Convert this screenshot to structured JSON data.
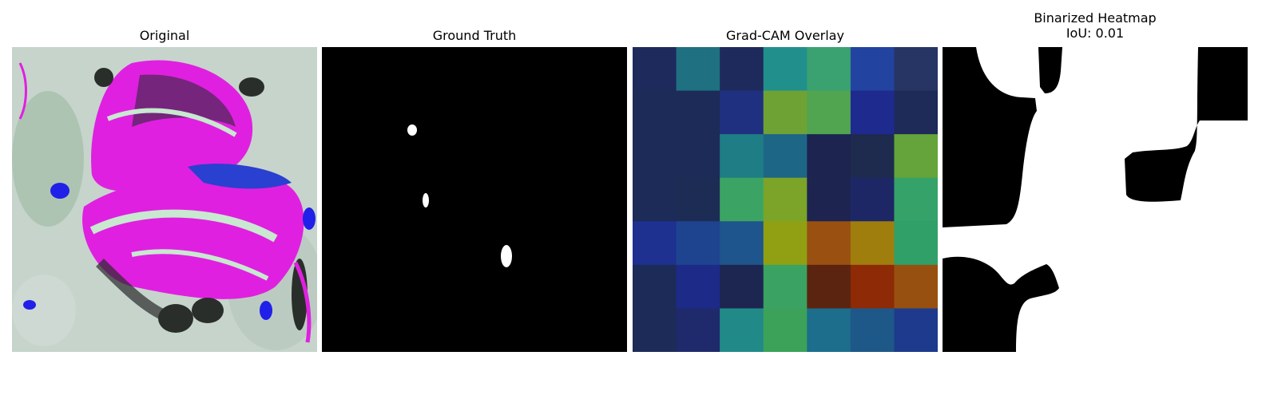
{
  "panels": [
    {
      "title": "Original"
    },
    {
      "title": "Ground Truth"
    },
    {
      "title": "Grad-CAM Overlay"
    },
    {
      "title_line1": "Binarized Heatmap",
      "title_line2": "IoU: 0.01"
    }
  ],
  "gradcam_cells": [
    [
      "#1e2a5c",
      "#1f7080",
      "#1e2a5c",
      "#21908c",
      "#3aa270",
      "#2244a0",
      "#273564"
    ],
    [
      "#1d2b58",
      "#1d2b58",
      "#1f3080",
      "#6fa235",
      "#52a550",
      "#1f2a8e",
      "#1e2a58"
    ],
    [
      "#1d2b58",
      "#1d2b58",
      "#1e7d85",
      "#1e6686",
      "#1d2450",
      "#1e2a4e",
      "#64a43a"
    ],
    [
      "#1d2b58",
      "#1d2c55",
      "#3ba465",
      "#7ba428",
      "#1d2450",
      "#1e2766",
      "#35a26a"
    ],
    [
      "#1e3090",
      "#1e4490",
      "#1e558c",
      "#90a012",
      "#9a5010",
      "#a07e0e",
      "#30a068"
    ],
    [
      "#1d2b58",
      "#1e2a88",
      "#1d2650",
      "#3aa262",
      "#5a2410",
      "#8e2a06",
      "#985010"
    ],
    [
      "#1d2b58",
      "#1f2a6c",
      "#218a88",
      "#3ca25a",
      "#1c6e8c",
      "#1e5888",
      "#1e3a8c"
    ]
  ]
}
